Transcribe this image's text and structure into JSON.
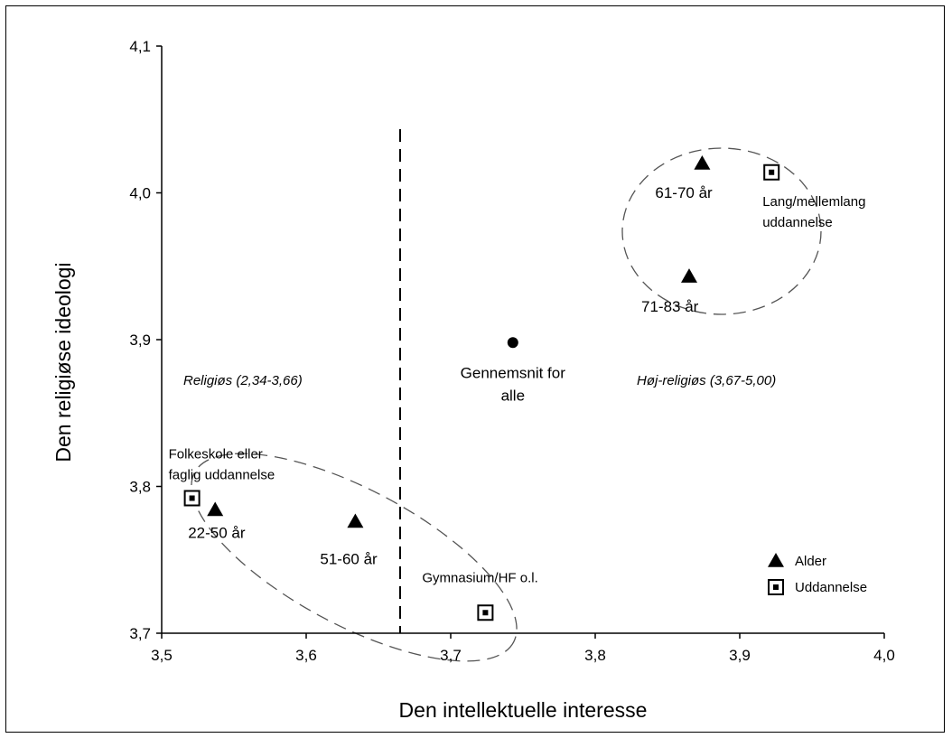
{
  "chart_data": {
    "type": "scatter",
    "xlabel": "Den intellektuelle interesse",
    "ylabel": "Den religiøse ideologi",
    "xlim": [
      3.5,
      4.0
    ],
    "ylim": [
      3.7,
      4.1
    ],
    "x_ticks": [
      "3,5",
      "3,6",
      "3,7",
      "3,8",
      "3,9",
      "4,0"
    ],
    "y_ticks": [
      "3,7",
      "3,8",
      "3,9",
      "4,0",
      "4,1"
    ],
    "grid": false,
    "series": [
      {
        "name": "Alder",
        "marker": "triangle",
        "points": [
          {
            "x": 3.537,
            "y": 3.784,
            "label": "22-50 år"
          },
          {
            "x": 3.634,
            "y": 3.776,
            "label": "51-60 år"
          },
          {
            "x": 3.874,
            "y": 4.02,
            "label": "61-70 år"
          },
          {
            "x": 3.865,
            "y": 3.943,
            "label": "71-83 år"
          }
        ]
      },
      {
        "name": "Uddannelse",
        "marker": "dotted-square",
        "points": [
          {
            "x": 3.521,
            "y": 3.792,
            "label": "Folkeskole eller faglig uddannelse"
          },
          {
            "x": 3.724,
            "y": 3.714,
            "label": "Gymnasium/HF o.l."
          },
          {
            "x": 3.922,
            "y": 4.014,
            "label": "Lang/mellemlang uddannelse"
          }
        ]
      },
      {
        "name": "",
        "marker": "circle",
        "points": [
          {
            "x": 3.743,
            "y": 3.898,
            "label": "Gennemsnit for alle"
          }
        ]
      }
    ],
    "reference_line": {
      "x": 3.665,
      "style": "dashed"
    },
    "regions": [
      {
        "label": "Religiøs (2,34-3,66)",
        "side": "left"
      },
      {
        "label": "Høj-religiøs (3,67-5,00)",
        "side": "right"
      }
    ],
    "legend": {
      "position": "bottom-right",
      "items": [
        {
          "label": "Alder",
          "marker": "triangle"
        },
        {
          "label": "Uddannelse",
          "marker": "dotted-square"
        }
      ]
    }
  }
}
